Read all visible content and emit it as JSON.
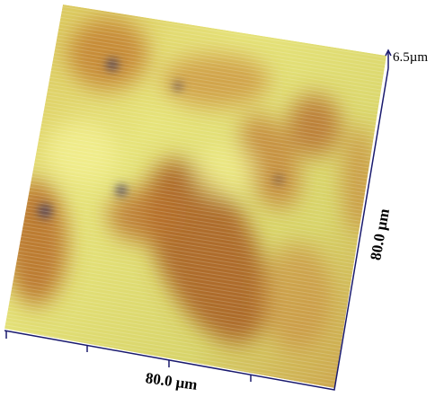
{
  "z_scale": {
    "label": "6.5µm"
  },
  "x_axis": {
    "label": "80.0 µm"
  },
  "y_axis": {
    "label": "80.0 µm"
  }
}
